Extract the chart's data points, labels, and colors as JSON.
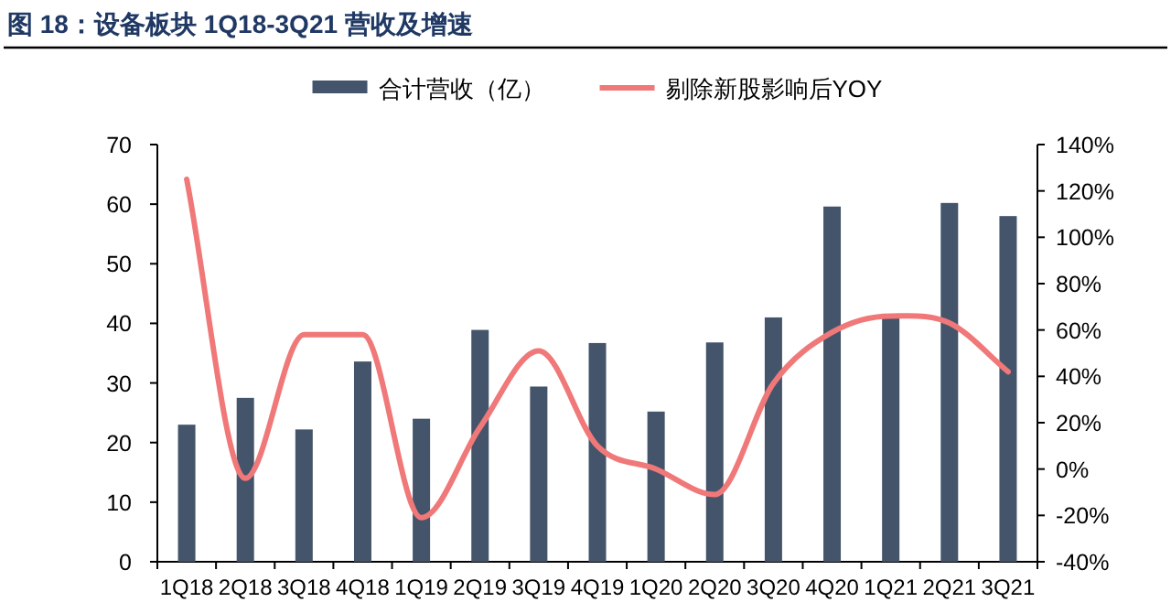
{
  "chart_data": {
    "type": "bar",
    "title": "图 18：设备板块 1Q18-3Q21 营收及增速",
    "categories": [
      "1Q18",
      "2Q18",
      "3Q18",
      "4Q18",
      "1Q19",
      "2Q19",
      "3Q19",
      "4Q19",
      "1Q20",
      "2Q20",
      "3Q20",
      "4Q20",
      "1Q21",
      "2Q21",
      "3Q21"
    ],
    "series": [
      {
        "name": "合计营收（亿）",
        "color": "#44546a",
        "values": [
          23,
          27.5,
          22.2,
          33.6,
          24,
          38.9,
          29.4,
          36.7,
          25.2,
          36.8,
          41,
          59.6,
          41.5,
          60.2,
          58
        ]
      },
      {
        "name": "剔除新股影响后YOY",
        "color": "#f07878",
        "type": "line",
        "axis": "y2",
        "values": [
          125,
          -4,
          58,
          58,
          -21,
          18,
          51,
          10,
          0,
          -11,
          37,
          59,
          66,
          63,
          42
        ]
      }
    ],
    "ylim": [
      0,
      70
    ],
    "yticks": [
      0,
      10,
      20,
      30,
      40,
      50,
      60,
      70
    ],
    "y2lim": [
      -40,
      140
    ],
    "y2ticks": [
      {
        "value": -40,
        "label": "-40%"
      },
      {
        "value": -20,
        "label": "-20%"
      },
      {
        "value": 0,
        "label": "0%"
      },
      {
        "value": 20,
        "label": "20%"
      },
      {
        "value": 40,
        "label": "40%"
      },
      {
        "value": 60,
        "label": "60%"
      },
      {
        "value": 80,
        "label": "80%"
      },
      {
        "value": 100,
        "label": "100%"
      },
      {
        "value": 120,
        "label": "120%"
      },
      {
        "value": 140,
        "label": "140%"
      }
    ],
    "legend": "top",
    "grid": false
  }
}
